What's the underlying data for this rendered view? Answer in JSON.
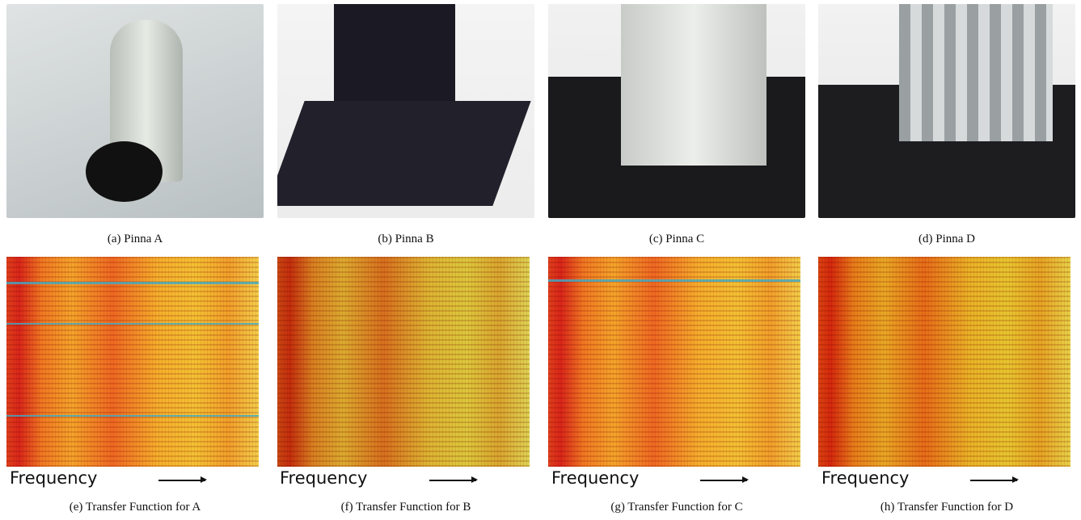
{
  "panels": [
    {
      "caption": "(a) Pinna A"
    },
    {
      "caption": "(b) Pinna B"
    },
    {
      "caption": "(c) Pinna C"
    },
    {
      "caption": "(d) Pinna D"
    }
  ],
  "transfer": [
    {
      "axis_label": "Frequency",
      "caption": "(e) Transfer Function for A"
    },
    {
      "axis_label": "Frequency",
      "caption": "(f) Transfer Function for B"
    },
    {
      "axis_label": "Frequency",
      "caption": "(g) Transfer Function for C"
    },
    {
      "axis_label": "Frequency",
      "caption": "(h) Transfer Function for D"
    }
  ]
}
